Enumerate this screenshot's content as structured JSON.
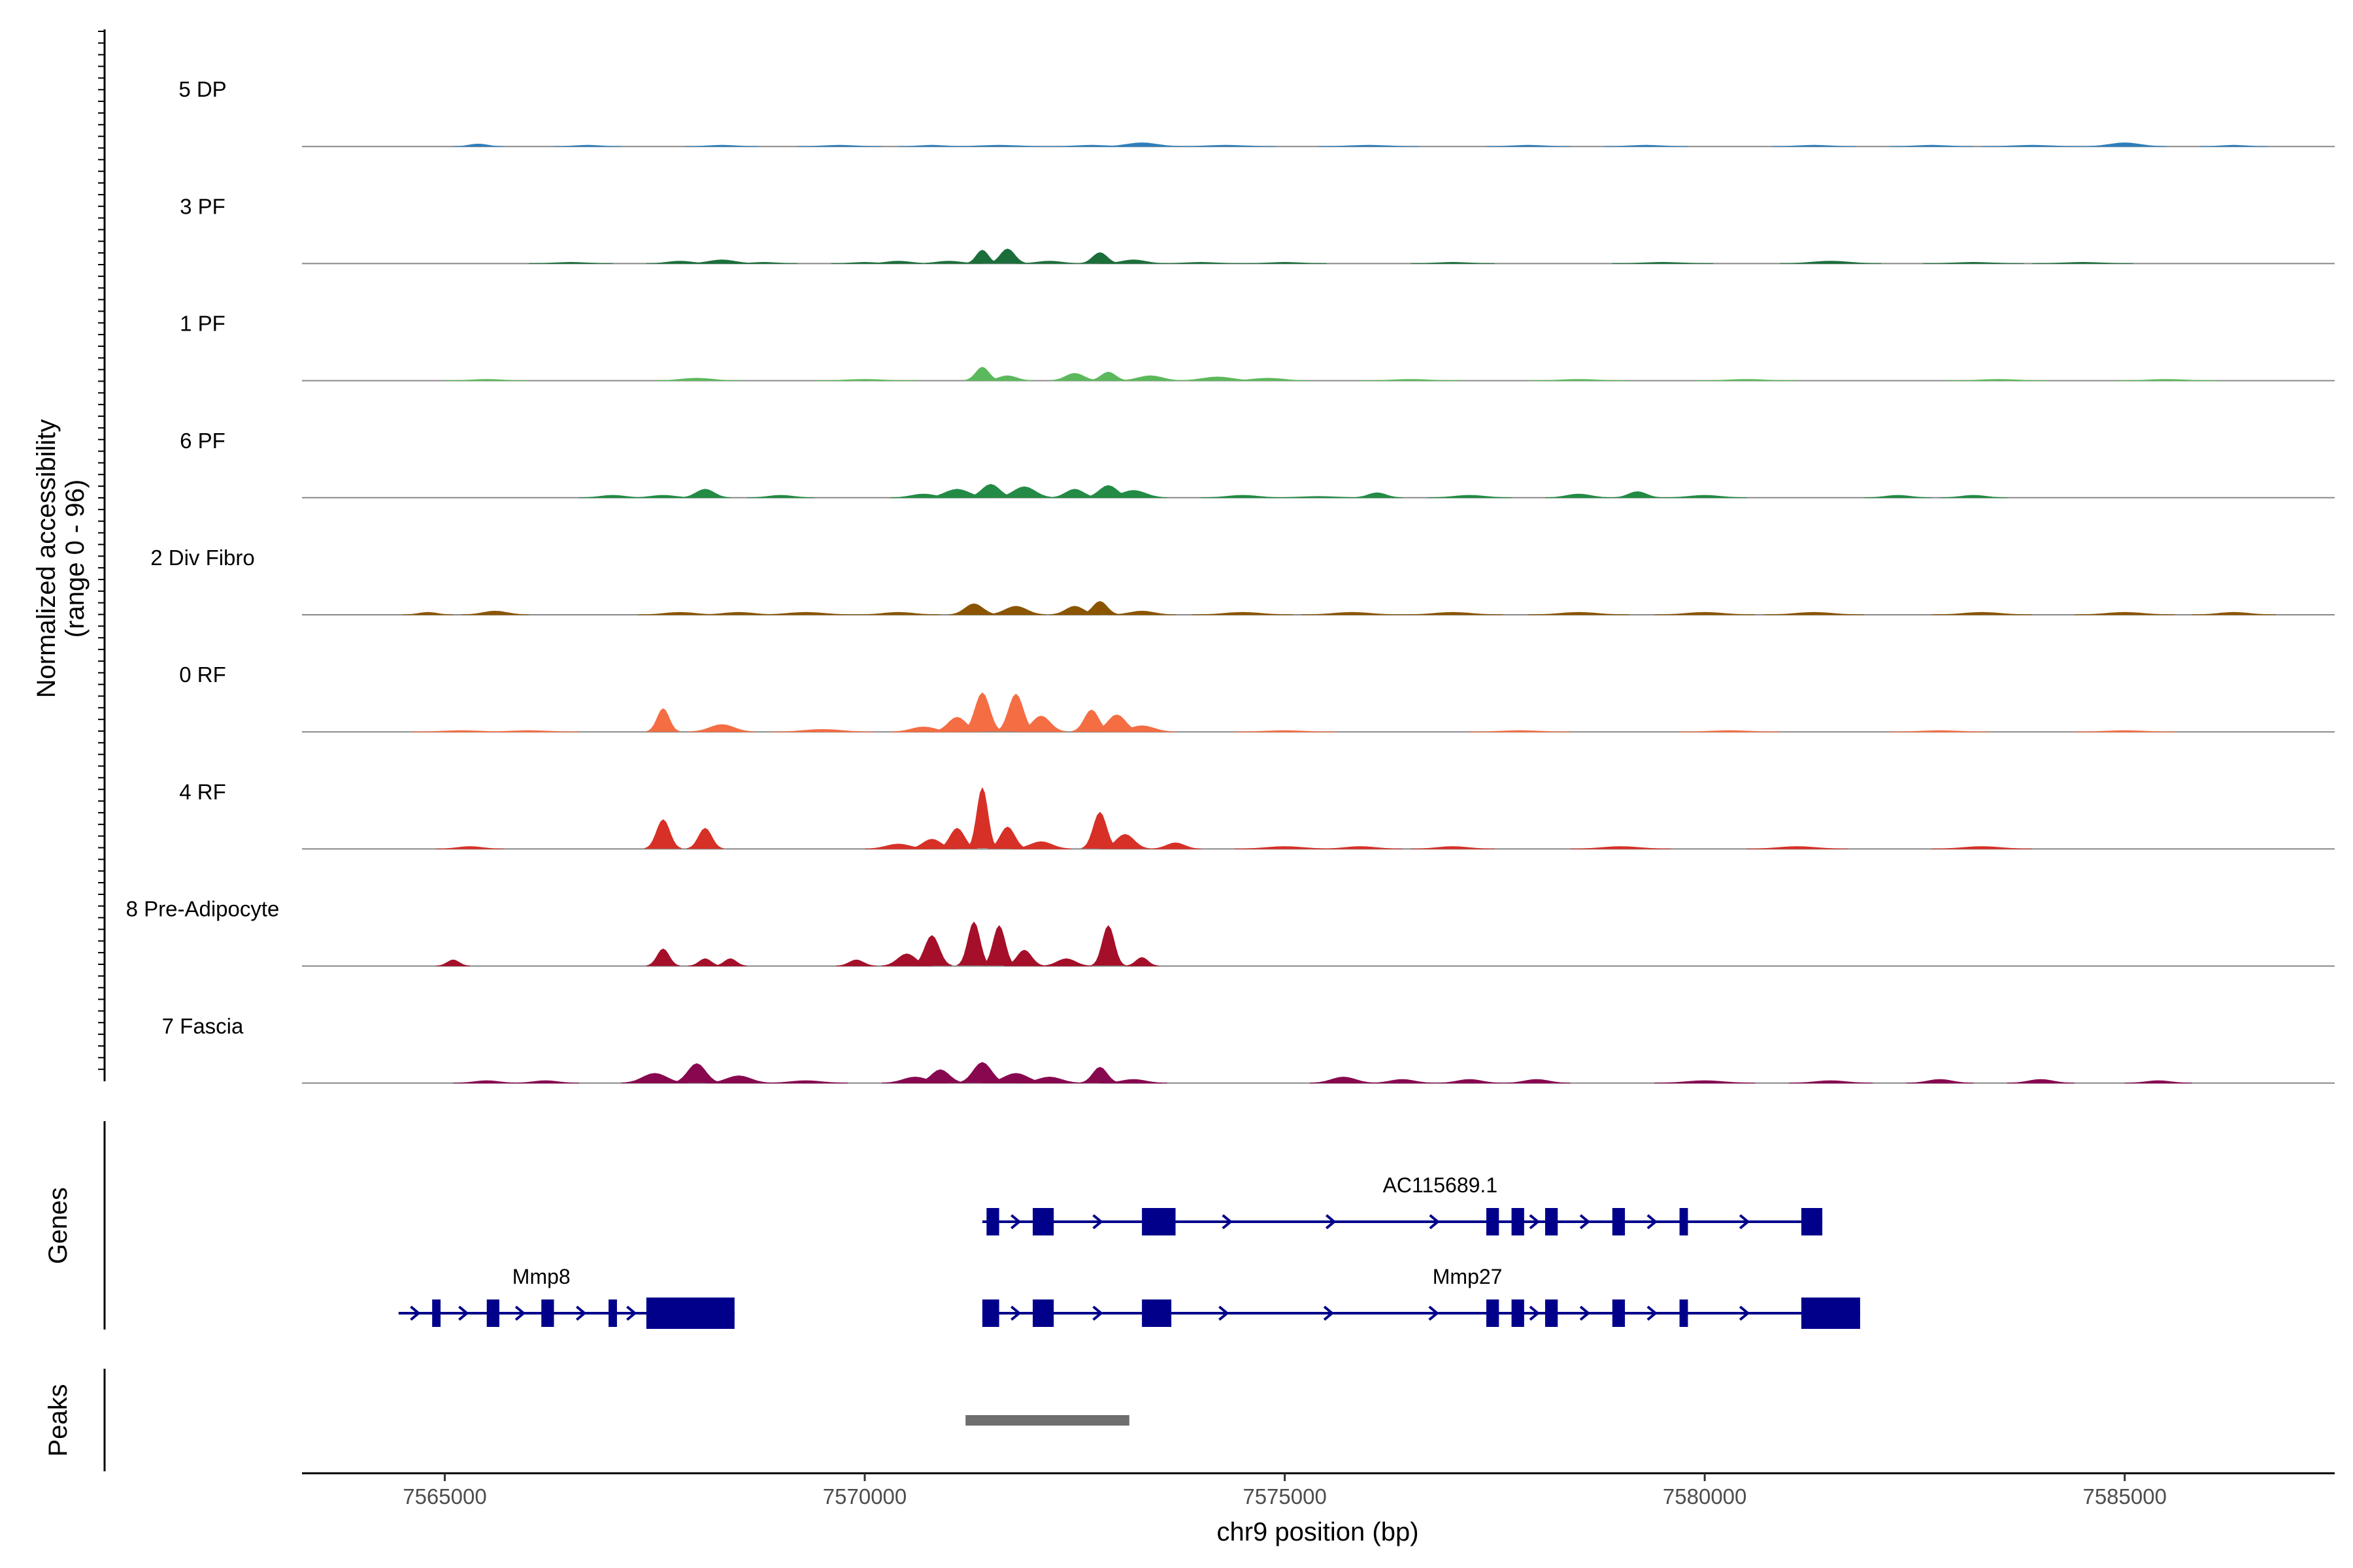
{
  "chart_data": {
    "type": "area",
    "title": "",
    "ylabel": "Normalized accessibility\n(range 0 - 96)",
    "y_range": [
      0,
      96
    ],
    "xlabel": "chr9 position (bp)",
    "xlim": [
      7563300,
      7587500
    ],
    "x_ticks": [
      7565000,
      7570000,
      7575000,
      7580000,
      7585000
    ],
    "x_tick_labels": [
      "7565000",
      "7570000",
      "7575000",
      "7580000",
      "7585000"
    ],
    "tracks": [
      {
        "name": "5 DP",
        "color": "#2E7EBB",
        "peaks": [
          [
            7565400,
            2,
            150
          ],
          [
            7566700,
            1,
            200
          ],
          [
            7568300,
            1,
            220
          ],
          [
            7569700,
            1,
            250
          ],
          [
            7570800,
            1,
            200
          ],
          [
            7571600,
            1,
            300
          ],
          [
            7572700,
            1,
            250
          ],
          [
            7573300,
            3,
            250
          ],
          [
            7574300,
            1,
            300
          ],
          [
            7576000,
            1,
            300
          ],
          [
            7577900,
            1,
            250
          ],
          [
            7579300,
            1,
            250
          ],
          [
            7581300,
            1,
            250
          ],
          [
            7582700,
            1,
            250
          ],
          [
            7583900,
            1,
            300
          ],
          [
            7585000,
            3,
            250
          ],
          [
            7586300,
            1,
            200
          ]
        ]
      },
      {
        "name": "3 PF",
        "color": "#1B6E3A",
        "peaks": [
          [
            7566500,
            1,
            250
          ],
          [
            7567800,
            2,
            200
          ],
          [
            7568300,
            3,
            220
          ],
          [
            7568800,
            1,
            200
          ],
          [
            7570000,
            1,
            200
          ],
          [
            7570400,
            2,
            200
          ],
          [
            7571000,
            2,
            200
          ],
          [
            7571400,
            11,
            100
          ],
          [
            7571700,
            12,
            120
          ],
          [
            7572200,
            2,
            200
          ],
          [
            7572800,
            9,
            120
          ],
          [
            7573200,
            3,
            200
          ],
          [
            7574000,
            1,
            250
          ],
          [
            7575000,
            1,
            250
          ],
          [
            7577000,
            1,
            250
          ],
          [
            7579500,
            1,
            300
          ],
          [
            7581500,
            2,
            300
          ],
          [
            7583200,
            1,
            300
          ],
          [
            7584500,
            1,
            300
          ]
        ]
      },
      {
        "name": "1 PF",
        "color": "#5CB85C",
        "peaks": [
          [
            7565500,
            1,
            250
          ],
          [
            7568000,
            2,
            250
          ],
          [
            7570000,
            1,
            300
          ],
          [
            7571400,
            11,
            110
          ],
          [
            7571700,
            4,
            150
          ],
          [
            7572500,
            6,
            150
          ],
          [
            7572900,
            7,
            120
          ],
          [
            7573400,
            4,
            200
          ],
          [
            7574200,
            3,
            250
          ],
          [
            7574800,
            2,
            250
          ],
          [
            7576500,
            1,
            300
          ],
          [
            7578500,
            1,
            300
          ],
          [
            7580500,
            1,
            300
          ],
          [
            7583500,
            1,
            300
          ],
          [
            7585500,
            1,
            300
          ]
        ]
      },
      {
        "name": "6 PF",
        "color": "#238B45",
        "peaks": [
          [
            7567000,
            2,
            200
          ],
          [
            7567600,
            2,
            200
          ],
          [
            7568100,
            7,
            150
          ],
          [
            7569000,
            2,
            200
          ],
          [
            7570700,
            3,
            200
          ],
          [
            7571100,
            7,
            200
          ],
          [
            7571500,
            11,
            150
          ],
          [
            7571900,
            9,
            180
          ],
          [
            7572500,
            7,
            150
          ],
          [
            7572900,
            10,
            150
          ],
          [
            7573200,
            6,
            200
          ],
          [
            7574500,
            2,
            250
          ],
          [
            7575400,
            1,
            300
          ],
          [
            7576100,
            4,
            150
          ],
          [
            7577200,
            2,
            250
          ],
          [
            7578500,
            3,
            200
          ],
          [
            7579200,
            5,
            150
          ],
          [
            7580000,
            2,
            250
          ],
          [
            7582300,
            2,
            200
          ],
          [
            7583200,
            2,
            200
          ]
        ]
      },
      {
        "name": "2 Div Fibro",
        "color": "#8B5500",
        "peaks": [
          [
            7564800,
            2,
            150
          ],
          [
            7565600,
            3,
            200
          ],
          [
            7567800,
            2,
            250
          ],
          [
            7568500,
            2,
            250
          ],
          [
            7569300,
            2,
            300
          ],
          [
            7570400,
            2,
            250
          ],
          [
            7571300,
            9,
            150
          ],
          [
            7571800,
            7,
            180
          ],
          [
            7572500,
            7,
            150
          ],
          [
            7572800,
            11,
            120
          ],
          [
            7573300,
            3,
            200
          ],
          [
            7574500,
            2,
            300
          ],
          [
            7575800,
            2,
            300
          ],
          [
            7577000,
            2,
            300
          ],
          [
            7578500,
            2,
            300
          ],
          [
            7580000,
            2,
            300
          ],
          [
            7581300,
            2,
            300
          ],
          [
            7583300,
            2,
            300
          ],
          [
            7585000,
            2,
            300
          ],
          [
            7586300,
            2,
            250
          ]
        ]
      },
      {
        "name": "0 RF",
        "color": "#F46D43",
        "peaks": [
          [
            7567600,
            19,
            100
          ],
          [
            7568300,
            6,
            200
          ],
          [
            7569500,
            2,
            300
          ],
          [
            7570700,
            4,
            200
          ],
          [
            7571100,
            12,
            150
          ],
          [
            7571400,
            32,
            120
          ],
          [
            7571800,
            31,
            120
          ],
          [
            7572100,
            13,
            150
          ],
          [
            7572700,
            18,
            120
          ],
          [
            7573000,
            14,
            150
          ],
          [
            7573300,
            5,
            200
          ],
          [
            7566000,
            1,
            300
          ],
          [
            7565200,
            1,
            300
          ],
          [
            7575000,
            1,
            300
          ],
          [
            7577800,
            1,
            300
          ],
          [
            7580300,
            1,
            300
          ],
          [
            7582800,
            1,
            300
          ],
          [
            7585000,
            1,
            300
          ]
        ]
      },
      {
        "name": "4 RF",
        "color": "#D73027",
        "peaks": [
          [
            7567600,
            24,
            110
          ],
          [
            7568100,
            17,
            110
          ],
          [
            7570400,
            4,
            200
          ],
          [
            7570800,
            8,
            150
          ],
          [
            7571100,
            17,
            120
          ],
          [
            7571400,
            50,
            90
          ],
          [
            7571700,
            18,
            120
          ],
          [
            7572100,
            6,
            180
          ],
          [
            7572800,
            30,
            110
          ],
          [
            7573100,
            12,
            150
          ],
          [
            7573700,
            5,
            150
          ],
          [
            7565300,
            2,
            200
          ],
          [
            7575000,
            2,
            300
          ],
          [
            7575900,
            2,
            250
          ],
          [
            7577000,
            2,
            250
          ],
          [
            7579000,
            2,
            300
          ],
          [
            7581100,
            2,
            300
          ],
          [
            7583300,
            2,
            300
          ]
        ]
      },
      {
        "name": "8 Pre-Adipocyte",
        "color": "#A50F29",
        "peaks": [
          [
            7565100,
            5,
            100
          ],
          [
            7567600,
            14,
            100
          ],
          [
            7568100,
            6,
            100
          ],
          [
            7568400,
            6,
            100
          ],
          [
            7569900,
            5,
            120
          ],
          [
            7570500,
            10,
            150
          ],
          [
            7570800,
            25,
            120
          ],
          [
            7571300,
            36,
            100
          ],
          [
            7571600,
            33,
            100
          ],
          [
            7571900,
            13,
            120
          ],
          [
            7572400,
            6,
            150
          ],
          [
            7572900,
            33,
            100
          ],
          [
            7573300,
            7,
            100
          ]
        ]
      },
      {
        "name": "7 Fascia",
        "color": "#880850",
        "peaks": [
          [
            7565500,
            2,
            200
          ],
          [
            7566200,
            2,
            200
          ],
          [
            7567500,
            8,
            200
          ],
          [
            7568000,
            16,
            150
          ],
          [
            7568500,
            6,
            200
          ],
          [
            7569300,
            2,
            250
          ],
          [
            7570600,
            5,
            200
          ],
          [
            7570900,
            11,
            150
          ],
          [
            7571400,
            17,
            150
          ],
          [
            7571800,
            8,
            200
          ],
          [
            7572200,
            5,
            200
          ],
          [
            7572800,
            13,
            120
          ],
          [
            7573200,
            3,
            200
          ],
          [
            7575700,
            5,
            200
          ],
          [
            7576400,
            3,
            200
          ],
          [
            7577200,
            3,
            200
          ],
          [
            7578000,
            3,
            200
          ],
          [
            7580000,
            2,
            300
          ],
          [
            7581500,
            2,
            250
          ],
          [
            7582800,
            3,
            200
          ],
          [
            7584000,
            3,
            200
          ],
          [
            7585400,
            2,
            200
          ]
        ]
      }
    ],
    "genes": {
      "title": "Genes",
      "transcripts": [
        {
          "name": "AC115689.1",
          "row": 0,
          "start": 7571400,
          "end": 7581400,
          "exons": [
            [
              7571450,
              7571600
            ],
            [
              7572000,
              7572250
            ],
            [
              7573300,
              7573700
            ],
            [
              7577400,
              7577550
            ],
            [
              7577700,
              7577850
            ],
            [
              7578100,
              7578250
            ],
            [
              7578900,
              7579050
            ],
            [
              7579700,
              7579800
            ],
            [
              7581150,
              7581400
            ]
          ]
        },
        {
          "name": "Mmp27",
          "row": 1,
          "start": 7571400,
          "end": 7581850,
          "exons": [
            [
              7571400,
              7571600
            ],
            [
              7572000,
              7572250
            ],
            [
              7573300,
              7573650
            ],
            [
              7577400,
              7577550
            ],
            [
              7577700,
              7577850
            ],
            [
              7578100,
              7578250
            ],
            [
              7578900,
              7579050
            ],
            [
              7579700,
              7579800
            ],
            [
              7581150,
              7581850
            ]
          ]
        },
        {
          "name": "Mmp8",
          "row": 1,
          "start": 7564450,
          "end": 7568450,
          "exons": [
            [
              7564850,
              7564950
            ],
            [
              7565500,
              7565650
            ],
            [
              7566150,
              7566300
            ],
            [
              7566950,
              7567050
            ],
            [
              7567400,
              7568450
            ]
          ]
        }
      ]
    },
    "peaks_track": {
      "title": "Peaks",
      "ranges": [
        [
          7571200,
          7573150
        ]
      ]
    }
  },
  "colors": {
    "gene": "#00008B",
    "peak_bar": "#6e6e6e",
    "baseline": "#888888"
  }
}
